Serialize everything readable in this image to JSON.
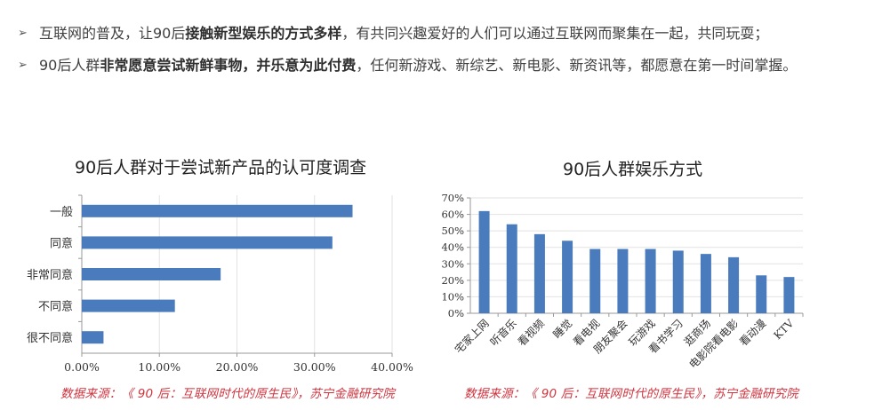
{
  "bullets": [
    {
      "marker": "➢",
      "segments": [
        {
          "text": "互联网的普及，让90后",
          "bold": false
        },
        {
          "text": "接触新型娱乐的方式多样",
          "bold": true
        },
        {
          "text": "，有共同兴趣爱好的人们可以通过互联网而聚集在一起，共同玩耍；",
          "bold": false
        }
      ]
    },
    {
      "marker": "➢",
      "segments": [
        {
          "text": "90后人群",
          "bold": false
        },
        {
          "text": "非常愿意尝试新鲜事物，并乐意为此付费",
          "bold": true
        },
        {
          "text": "，任何新游戏、新综艺、新电影、新资讯等，都愿意在第一时间掌握。",
          "bold": false
        }
      ]
    }
  ],
  "left_chart": {
    "title": "90后人群对于尝试新产品的认可度调查",
    "source": "数据来源：《 90 后：互联网时代的原生民》，苏宁金融研究院"
  },
  "right_chart": {
    "title": "90后人群娱乐方式",
    "source": "数据来源：《 90 后：互联网时代的原生民》，苏宁金融研究院"
  },
  "colors": {
    "bar": "#4a7bbd",
    "grid": "#e2e2e2",
    "axis": "#9a9a9a",
    "source_text": "#d0343f"
  },
  "chart_data": [
    {
      "type": "bar",
      "orientation": "horizontal",
      "title": "90后人群对于尝试新产品的认可度调查",
      "categories": [
        "一般",
        "同意",
        "非常同意",
        "不同意",
        "很不同意"
      ],
      "values": [
        34.9,
        32.3,
        17.9,
        12.0,
        2.8
      ],
      "xlabel": "",
      "ylabel": "",
      "xlim": [
        0,
        40
      ],
      "x_ticks": [
        "0.00%",
        "10.00%",
        "20.00%",
        "30.00%",
        "40.00%"
      ],
      "grid": "vertical",
      "legend": "none",
      "source": "数据来源：《 90 后：互联网时代的原生民》，苏宁金融研究院"
    },
    {
      "type": "bar",
      "orientation": "vertical",
      "title": "90后人群娱乐方式",
      "categories": [
        "宅家上网",
        "听音乐",
        "看视频",
        "睡觉",
        "看电视",
        "朋友聚会",
        "玩游戏",
        "看书学习",
        "逛商场",
        "电影院看电影",
        "看动漫",
        "KTV"
      ],
      "values": [
        62,
        54,
        48,
        44,
        39,
        39,
        39,
        38,
        36,
        34,
        23,
        22
      ],
      "xlabel": "",
      "ylabel": "",
      "ylim": [
        0,
        70
      ],
      "y_ticks": [
        "0%",
        "10%",
        "20%",
        "30%",
        "40%",
        "50%",
        "60%",
        "70%"
      ],
      "grid": "horizontal",
      "legend": "none",
      "source": "数据来源：《 90 后：互联网时代的原生民》，苏宁金融研究院"
    }
  ]
}
